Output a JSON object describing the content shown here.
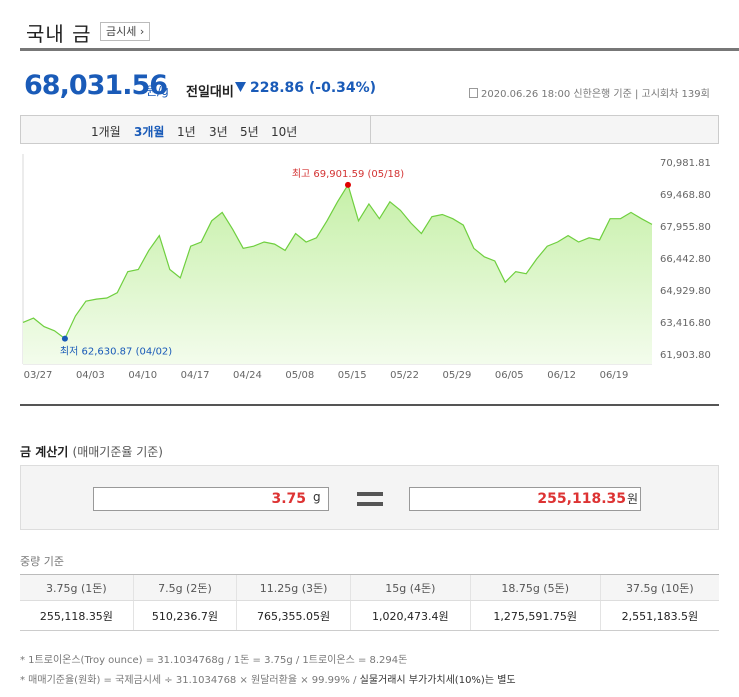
{
  "header": {
    "title": "국내 금",
    "sise_button": "금시세 ›"
  },
  "price": {
    "value": "68,031.56",
    "unit": "원/g",
    "compare_label": "전일대비",
    "compare_value": "228.86 (-0.34%)",
    "direction": "down",
    "meta": "2020.06.26 18:00  신한은행 기준  |  고시회차 139회"
  },
  "period_tabs": [
    {
      "label": "1개월",
      "active": false
    },
    {
      "label": "3개월",
      "active": true
    },
    {
      "label": "1년",
      "active": false
    },
    {
      "label": "3년",
      "active": false
    },
    {
      "label": "5년",
      "active": false
    },
    {
      "label": "10년",
      "active": false
    }
  ],
  "chart_data": {
    "type": "area",
    "x_tick_labels": [
      "03/27",
      "04/03",
      "04/10",
      "04/17",
      "04/24",
      "05/08",
      "05/15",
      "05/22",
      "05/29",
      "06/05",
      "06/12",
      "06/19"
    ],
    "y_tick_labels": [
      "70,981.81",
      "69,468.80",
      "67,955.80",
      "66,442.80",
      "64,929.80",
      "63,416.80",
      "61,903.80"
    ],
    "ylim": [
      61903.8,
      70981.81
    ],
    "values": [
      63400,
      63600,
      63200,
      63000,
      62630.87,
      63700,
      64400,
      64500,
      64550,
      64800,
      65800,
      65900,
      66800,
      67500,
      65900,
      65500,
      67000,
      67200,
      68200,
      68600,
      67800,
      66900,
      67000,
      67200,
      67100,
      66800,
      67600,
      67200,
      67400,
      68200,
      69100,
      69901.59,
      68200,
      69000,
      68300,
      69100,
      68700,
      68100,
      67600,
      68400,
      68500,
      68300,
      68000,
      66900,
      66500,
      66300,
      65300,
      65800,
      65700,
      66400,
      67000,
      67200,
      67500,
      67200,
      67400,
      67300,
      68300,
      68300,
      68600,
      68300,
      68031.56
    ],
    "max_label": "최고  69,901.59 (05/18)",
    "min_label": "최저  62,630.87 (04/02)",
    "max_value": 69901.59,
    "min_value": 62630.87,
    "colors": {
      "line": "#6fcf3f",
      "fill_top": "#c6f0a8",
      "fill_bottom": "#f3fcec",
      "max_dot": "#e00000",
      "min_dot": "#1a5bb8",
      "max_text": "#d33333",
      "min_text": "#1a5bb8"
    }
  },
  "calculator": {
    "title": "금 계산기",
    "subtitle": "(매매기준율 기준)",
    "weight_value": "3.75",
    "weight_unit": "g",
    "equals": "=",
    "won_value": "255,118.35",
    "won_unit": "원"
  },
  "weight_table": {
    "title": "중량 기준",
    "headers": [
      "3.75g (1돈)",
      "7.5g (2돈)",
      "11.25g (3돈)",
      "15g (4돈)",
      "18.75g (5돈)",
      "37.5g (10돈)"
    ],
    "values": [
      "255,118.35원",
      "510,236.7원",
      "765,355.05원",
      "1,020,473.4원",
      "1,275,591.75원",
      "2,551,183.5원"
    ]
  },
  "notes": {
    "note1": "* 1트로이온스(Troy ounce) = 31.1034768g / 1돈 = 3.75g / 1트로이온스 = 8.294돈",
    "note2_prefix": "* 매매기준율(원화) = 국제금시세 ÷ 31.1034768 × 원달러환율 × 99.99% / ",
    "note2_strong": "실물거래시 부가가치세(10%)는 별도"
  }
}
